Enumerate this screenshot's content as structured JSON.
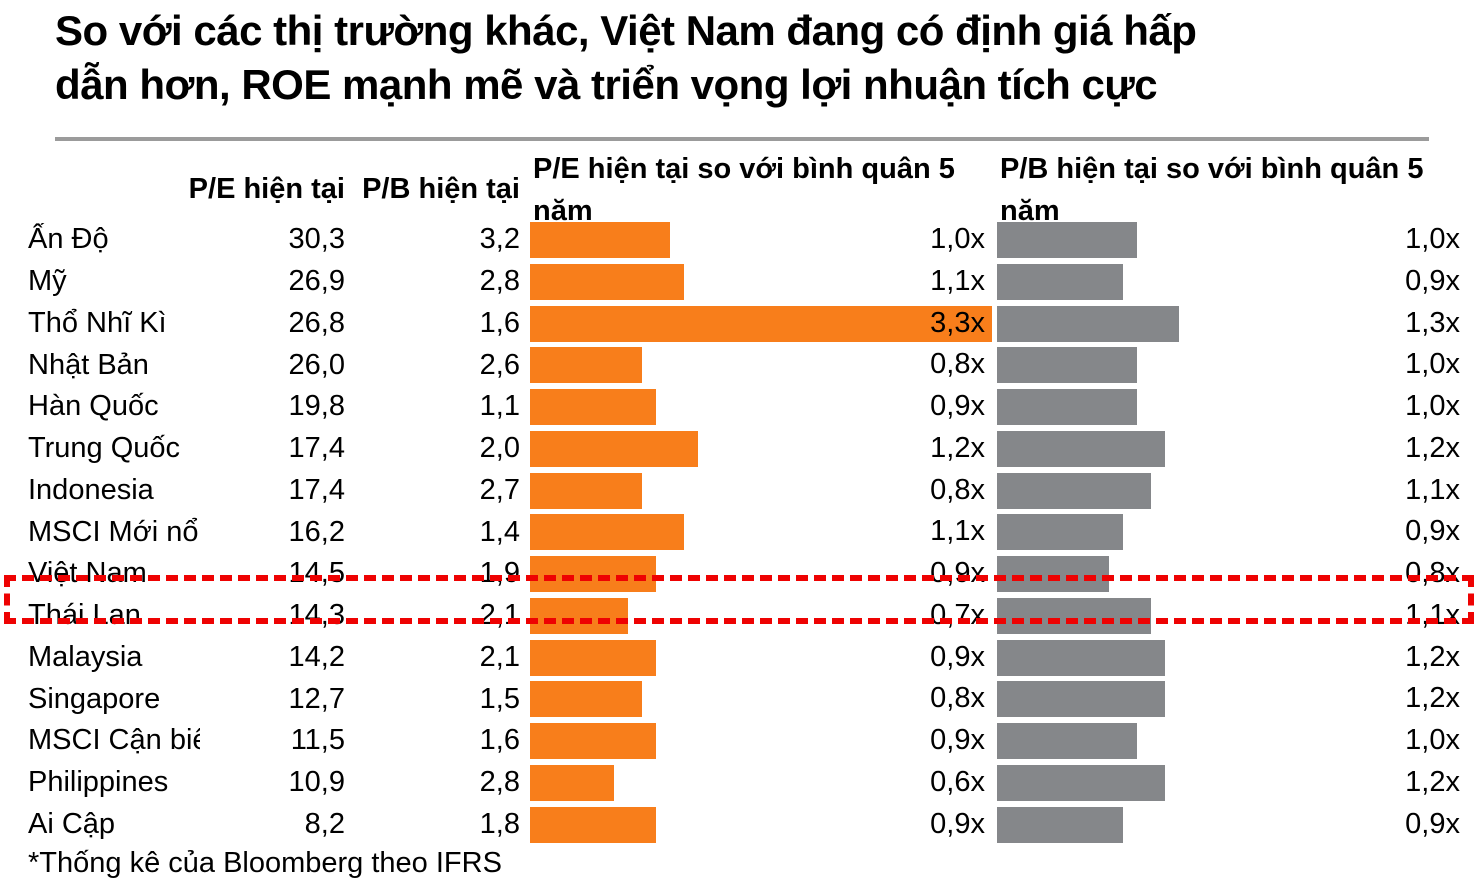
{
  "title": "So với các thị trường khác, Việt Nam đang có định giá hấp\ndẫn hơn, ROE mạnh mẽ và triển vọng lợi nhuận tích cực",
  "footnote": "*Thống kê của Bloomberg theo IFRS",
  "columns": {
    "pe": "P/E hiện tại",
    "pb": "P/B hiện tại",
    "pe5": "P/E hiện tại so với bình quân 5\nnăm",
    "pb5": "P/B hiện tại so với bình quân 5\nnăm"
  },
  "colors": {
    "orange_bar": "#f87e1b",
    "gray_bar": "#85878a",
    "highlight_red": "#ee0202",
    "divider_gray": "#9b9b9b"
  },
  "rows": [
    {
      "label": "Ấn Độ",
      "pe": "30,3",
      "pb": "3,2",
      "pe5": "1,0x",
      "pe5_val": 1.0,
      "pb5": "1,0x",
      "pb5_val": 1.0,
      "highlighted": false
    },
    {
      "label": "Mỹ",
      "pe": "26,9",
      "pb": "2,8",
      "pe5": "1,1x",
      "pe5_val": 1.1,
      "pb5": "0,9x",
      "pb5_val": 0.9,
      "highlighted": false
    },
    {
      "label": "Thổ Nhĩ Kì",
      "pe": "26,8",
      "pb": "1,6",
      "pe5": "3,3x",
      "pe5_val": 3.3,
      "pb5": "1,3x",
      "pb5_val": 1.3,
      "highlighted": false
    },
    {
      "label": "Nhật Bản",
      "pe": "26,0",
      "pb": "2,6",
      "pe5": "0,8x",
      "pe5_val": 0.8,
      "pb5": "1,0x",
      "pb5_val": 1.0,
      "highlighted": false
    },
    {
      "label": "Hàn Quốc",
      "pe": "19,8",
      "pb": "1,1",
      "pe5": "0,9x",
      "pe5_val": 0.9,
      "pb5": "1,0x",
      "pb5_val": 1.0,
      "highlighted": false
    },
    {
      "label": "Trung Quốc",
      "pe": "17,4",
      "pb": "2,0",
      "pe5": "1,2x",
      "pe5_val": 1.2,
      "pb5": "1,2x",
      "pb5_val": 1.2,
      "highlighted": false
    },
    {
      "label": "Indonesia",
      "pe": "17,4",
      "pb": "2,7",
      "pe5": "0,8x",
      "pe5_val": 0.8,
      "pb5": "1,1x",
      "pb5_val": 1.1,
      "highlighted": false
    },
    {
      "label": "MSCI Mới nổi",
      "pe": "16,2",
      "pb": "1,4",
      "pe5": "1,1x",
      "pe5_val": 1.1,
      "pb5": "0,9x",
      "pb5_val": 0.9,
      "highlighted": false
    },
    {
      "label": "Việt Nam",
      "pe": "14,5",
      "pb": "1,9",
      "pe5": "0,9x",
      "pe5_val": 0.9,
      "pb5": "0,8x",
      "pb5_val": 0.8,
      "highlighted": true
    },
    {
      "label": "Thái Lan",
      "pe": "14,3",
      "pb": "2,1",
      "pe5": "0,7x",
      "pe5_val": 0.7,
      "pb5": "1,1x",
      "pb5_val": 1.1,
      "highlighted": true
    },
    {
      "label": "Malaysia",
      "pe": "14,2",
      "pb": "2,1",
      "pe5": "0,9x",
      "pe5_val": 0.9,
      "pb5": "1,2x",
      "pb5_val": 1.2,
      "highlighted": false
    },
    {
      "label": "Singapore",
      "pe": "12,7",
      "pb": "1,5",
      "pe5": "0,8x",
      "pe5_val": 0.8,
      "pb5": "1,2x",
      "pb5_val": 1.2,
      "highlighted": false
    },
    {
      "label": "MSCI Cận biê",
      "pe": "11,5",
      "pb": "1,6",
      "pe5": "0,9x",
      "pe5_val": 0.9,
      "pb5": "1,0x",
      "pb5_val": 1.0,
      "highlighted": false
    },
    {
      "label": "Philippines",
      "pe": "10,9",
      "pb": "2,8",
      "pe5": "0,6x",
      "pe5_val": 0.6,
      "pb5": "1,2x",
      "pb5_val": 1.2,
      "highlighted": false
    },
    {
      "label": "Ai Cập",
      "pe": "8,2",
      "pb": "1,8",
      "pe5": "0,9x",
      "pe5_val": 0.9,
      "pb5": "0,9x",
      "pb5_val": 0.9,
      "highlighted": false
    }
  ],
  "chart_data": {
    "type": "bar",
    "orientation": "horizontal",
    "title": "So với các thị trường khác, Việt Nam đang có định giá hấp dẫn hơn, ROE mạnh mẽ và triển vọng lợi nhuận tích cực",
    "categories": [
      "Ấn Độ",
      "Mỹ",
      "Thổ Nhĩ Kì",
      "Nhật Bản",
      "Hàn Quốc",
      "Trung Quốc",
      "Indonesia",
      "MSCI Mới nổi",
      "Việt Nam",
      "Thái Lan",
      "Malaysia",
      "Singapore",
      "MSCI Cận biê",
      "Philippines",
      "Ai Cập"
    ],
    "series": [
      {
        "name": "P/E hiện tại",
        "display": "table",
        "values": [
          30.3,
          26.9,
          26.8,
          26.0,
          19.8,
          17.4,
          17.4,
          16.2,
          14.5,
          14.3,
          14.2,
          12.7,
          11.5,
          10.9,
          8.2
        ]
      },
      {
        "name": "P/B hiện tại",
        "display": "table",
        "values": [
          3.2,
          2.8,
          1.6,
          2.6,
          1.1,
          2.0,
          2.7,
          1.4,
          1.9,
          2.1,
          2.1,
          1.5,
          1.6,
          2.8,
          1.8
        ]
      },
      {
        "name": "P/E hiện tại so với bình quân 5 năm",
        "display": "bar",
        "color": "#f87e1b",
        "unit": "x",
        "values": [
          1.0,
          1.1,
          3.3,
          0.8,
          0.9,
          1.2,
          0.8,
          1.1,
          0.9,
          0.7,
          0.9,
          0.8,
          0.9,
          0.6,
          0.9
        ]
      },
      {
        "name": "P/B hiện tại so với bình quân 5 năm",
        "display": "bar",
        "color": "#85878a",
        "unit": "x",
        "values": [
          1.0,
          0.9,
          1.3,
          1.0,
          1.0,
          1.2,
          1.1,
          0.9,
          0.8,
          1.1,
          1.2,
          1.2,
          1.0,
          1.2,
          0.9
        ]
      }
    ],
    "highlighted_rows": [
      "Việt Nam",
      "Thái Lan"
    ],
    "annotations": [
      "*Thống kê của Bloomberg theo IFRS"
    ],
    "legend": false,
    "grid": false
  }
}
